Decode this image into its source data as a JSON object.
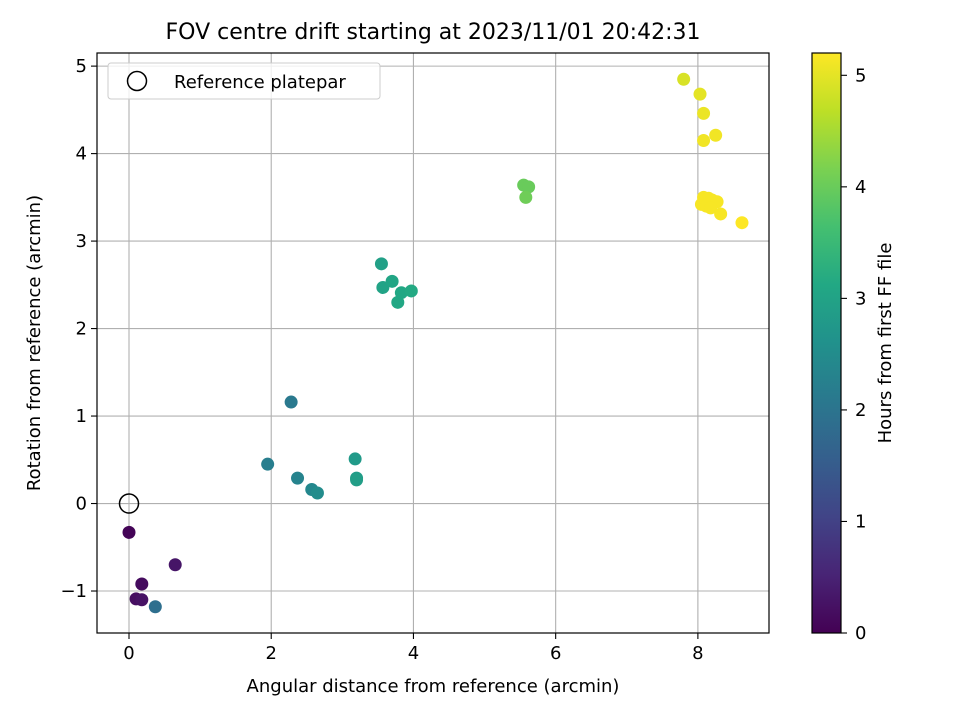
{
  "chart_data": {
    "type": "scatter",
    "title": "FOV centre drift starting at 2023/11/01 20:42:31",
    "xlabel": "Angular distance from reference (arcmin)",
    "ylabel": "Rotation from reference (arcmin)",
    "xlim": [
      -0.45,
      9.0
    ],
    "ylim": [
      -1.48,
      5.15
    ],
    "xticks": [
      0,
      2,
      4,
      6,
      8
    ],
    "yticks": [
      -1,
      0,
      1,
      2,
      3,
      4,
      5
    ],
    "grid": true,
    "legend": {
      "placement": "upper-left",
      "entries": [
        "Reference platepar"
      ]
    },
    "reference_point": {
      "x": 0.0,
      "y": 0.0,
      "label": "Reference platepar"
    },
    "colorbar": {
      "label": "Hours from first FF file",
      "colormap": "viridis",
      "range": [
        0,
        5.2
      ],
      "ticks": [
        0,
        1,
        2,
        3,
        4,
        5
      ]
    },
    "series": [
      {
        "points": [
          {
            "x": 0.0,
            "y": -0.33,
            "c": 0.05
          },
          {
            "x": 0.65,
            "y": -0.7,
            "c": 0.3
          },
          {
            "x": 0.18,
            "y": -0.92,
            "c": 0.15
          },
          {
            "x": 0.1,
            "y": -1.09,
            "c": 0.2
          },
          {
            "x": 0.18,
            "y": -1.1,
            "c": 0.25
          },
          {
            "x": 0.37,
            "y": -1.18,
            "c": 1.9
          },
          {
            "x": 1.95,
            "y": 0.45,
            "c": 2.2
          },
          {
            "x": 2.28,
            "y": 1.16,
            "c": 2.1
          },
          {
            "x": 2.37,
            "y": 0.29,
            "c": 2.3
          },
          {
            "x": 2.57,
            "y": 0.16,
            "c": 2.4
          },
          {
            "x": 2.65,
            "y": 0.12,
            "c": 2.5
          },
          {
            "x": 3.18,
            "y": 0.51,
            "c": 2.8
          },
          {
            "x": 3.2,
            "y": 0.29,
            "c": 2.85
          },
          {
            "x": 3.2,
            "y": 0.27,
            "c": 2.9
          },
          {
            "x": 3.55,
            "y": 2.74,
            "c": 2.95
          },
          {
            "x": 3.57,
            "y": 2.47,
            "c": 3.0
          },
          {
            "x": 3.7,
            "y": 2.54,
            "c": 3.05
          },
          {
            "x": 3.78,
            "y": 2.3,
            "c": 3.1
          },
          {
            "x": 3.83,
            "y": 2.41,
            "c": 3.1
          },
          {
            "x": 3.97,
            "y": 2.43,
            "c": 3.15
          },
          {
            "x": 5.55,
            "y": 3.64,
            "c": 4.0
          },
          {
            "x": 5.62,
            "y": 3.62,
            "c": 4.0
          },
          {
            "x": 5.58,
            "y": 3.5,
            "c": 4.05
          },
          {
            "x": 7.8,
            "y": 4.85,
            "c": 4.9
          },
          {
            "x": 8.03,
            "y": 4.68,
            "c": 5.0
          },
          {
            "x": 8.08,
            "y": 4.46,
            "c": 5.05
          },
          {
            "x": 8.08,
            "y": 4.15,
            "c": 5.1
          },
          {
            "x": 8.25,
            "y": 4.21,
            "c": 5.1
          },
          {
            "x": 8.08,
            "y": 3.5,
            "c": 5.15
          },
          {
            "x": 8.15,
            "y": 3.49,
            "c": 5.15
          },
          {
            "x": 8.2,
            "y": 3.47,
            "c": 5.15
          },
          {
            "x": 8.27,
            "y": 3.45,
            "c": 5.15
          },
          {
            "x": 8.05,
            "y": 3.42,
            "c": 5.15
          },
          {
            "x": 8.12,
            "y": 3.4,
            "c": 5.15
          },
          {
            "x": 8.18,
            "y": 3.38,
            "c": 5.15
          },
          {
            "x": 8.32,
            "y": 3.31,
            "c": 5.15
          },
          {
            "x": 8.62,
            "y": 3.21,
            "c": 5.2
          }
        ]
      }
    ]
  }
}
